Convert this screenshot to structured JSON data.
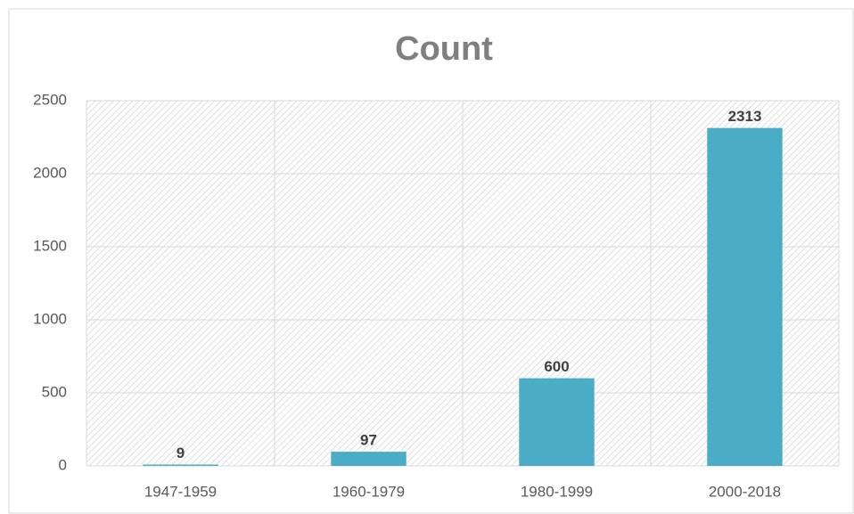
{
  "chart_data": {
    "type": "bar",
    "title": "Count",
    "categories": [
      "1947-1959",
      "1960-1979",
      "1980-1999",
      "2000-2018"
    ],
    "values": [
      9,
      97,
      600,
      2313
    ],
    "color": "#4bacc6",
    "ylim": [
      0,
      2500
    ],
    "yticks": [
      0,
      500,
      1000,
      1500,
      2000,
      2500
    ],
    "grid": true
  }
}
